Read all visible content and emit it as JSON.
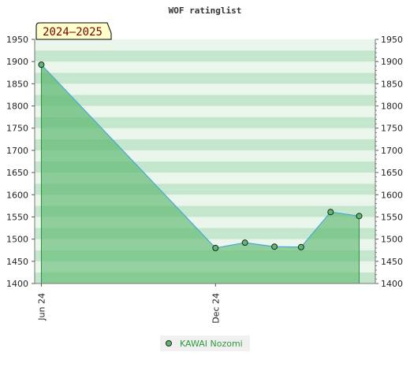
{
  "chart_data": {
    "type": "area",
    "title": "WOF ratinglist",
    "season_badge": "2024–2025",
    "xlabel": "",
    "ylabel": "",
    "ylim": [
      1400,
      1950
    ],
    "y_ticks": [
      1400,
      1450,
      1500,
      1550,
      1600,
      1650,
      1700,
      1750,
      1800,
      1850,
      1900,
      1950
    ],
    "x_range": [
      "2024-05-25",
      "2025-05-18"
    ],
    "x_tick_labels": [
      {
        "label": "Jun 24",
        "date": "2024-06-01"
      },
      {
        "label": "Dec 24",
        "date": "2024-12-01"
      }
    ],
    "series": [
      {
        "name": "KAWAI Nozomi",
        "color": "#2e9a3e",
        "points": [
          {
            "x": "2024-06-01",
            "y": 1893
          },
          {
            "x": "2024-12-01",
            "y": 1480
          },
          {
            "x": "2025-01-01",
            "y": 1492
          },
          {
            "x": "2025-02-01",
            "y": 1483
          },
          {
            "x": "2025-03-01",
            "y": 1482
          },
          {
            "x": "2025-04-01",
            "y": 1561
          },
          {
            "x": "2025-05-01",
            "y": 1552
          }
        ]
      }
    ],
    "grid": true,
    "legend_position": "bottom-center",
    "colors": {
      "band_dark": "#c4e6cc",
      "band_light": "#eaf6ec",
      "area_fill": "#5db870",
      "line": "#4aa8d8",
      "marker_fill": "#5db870",
      "badge_fill": "#ffffcc",
      "badge_text": "#7a0000"
    }
  }
}
